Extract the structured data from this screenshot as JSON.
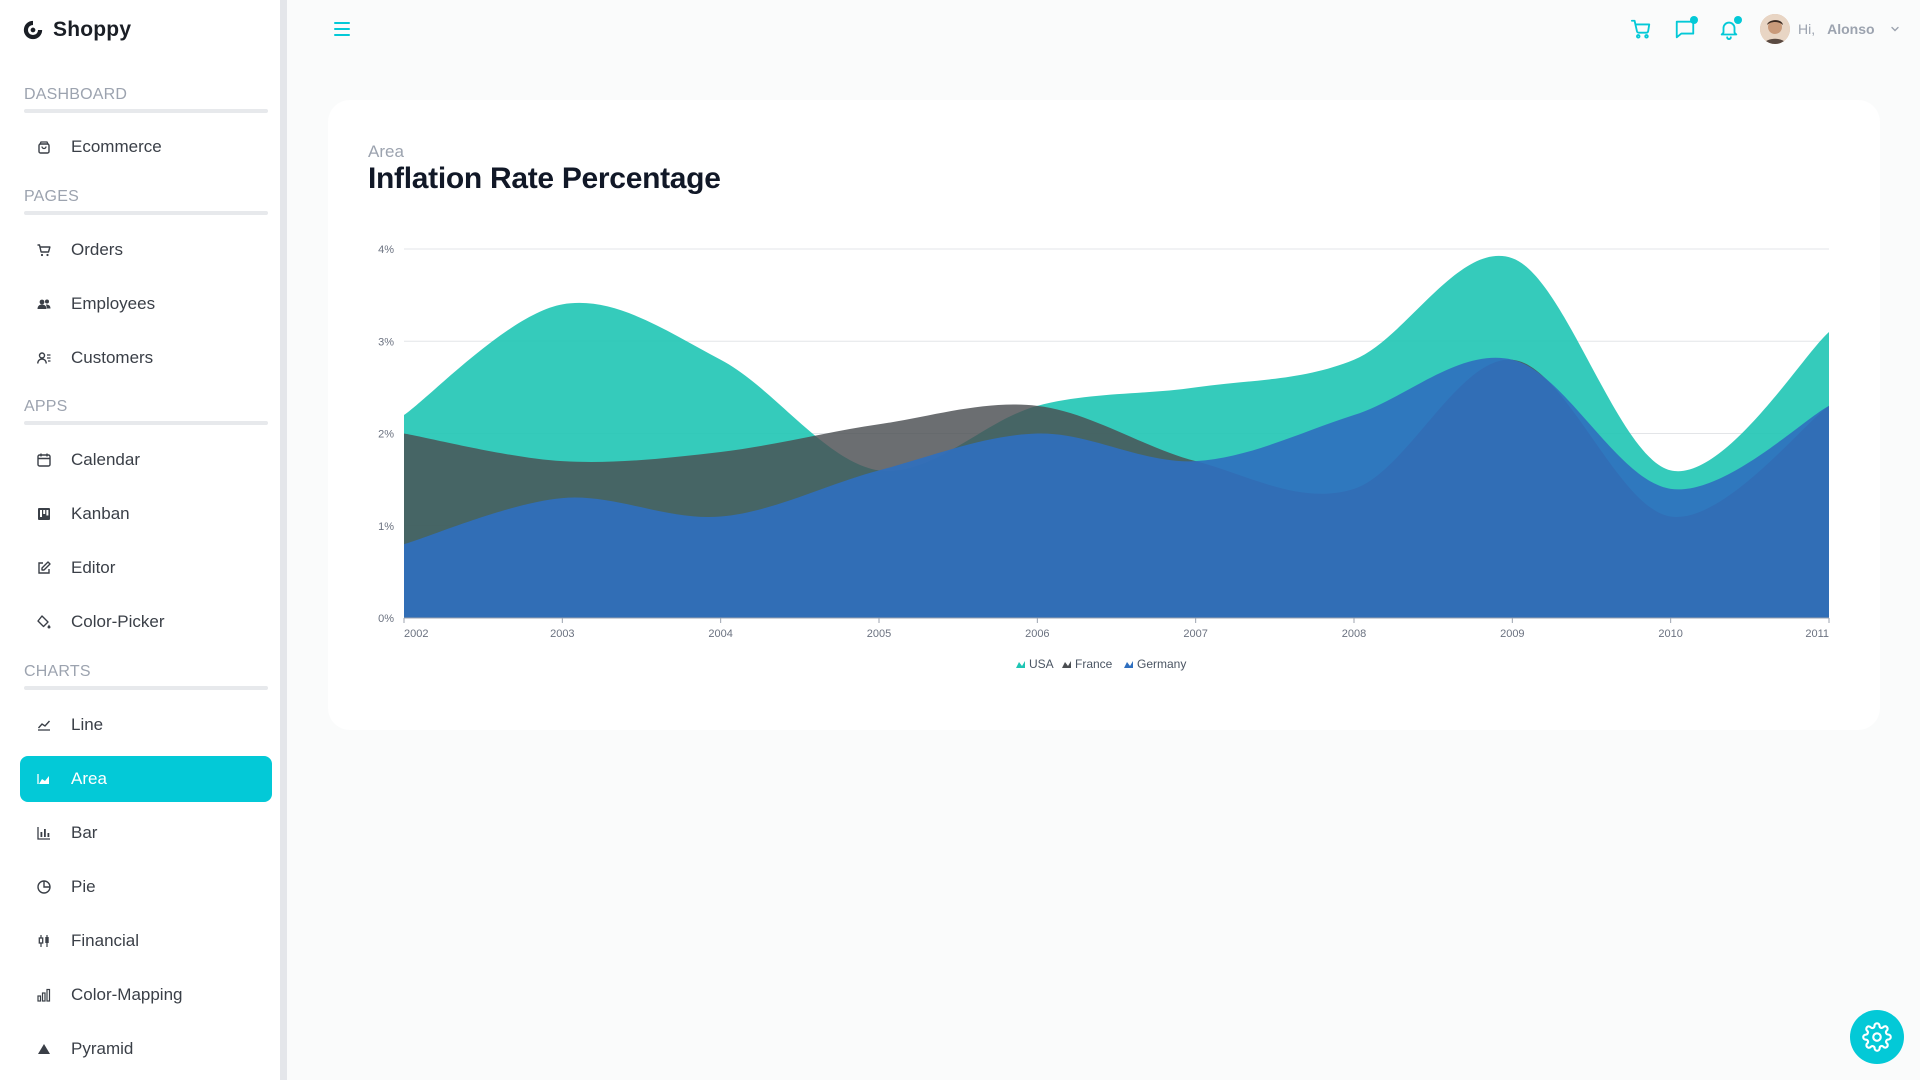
{
  "brand": {
    "name": "Shoppy"
  },
  "sidebar": {
    "sections": [
      {
        "title": "DASHBOARD",
        "items": [
          {
            "label": "Ecommerce",
            "icon": "shopping-bag-icon"
          }
        ]
      },
      {
        "title": "PAGES",
        "items": [
          {
            "label": "Orders",
            "icon": "cart-icon"
          },
          {
            "label": "Employees",
            "icon": "people-icon"
          },
          {
            "label": "Customers",
            "icon": "contacts-icon"
          }
        ]
      },
      {
        "title": "APPS",
        "items": [
          {
            "label": "Calendar",
            "icon": "calendar-icon"
          },
          {
            "label": "Kanban",
            "icon": "kanban-icon"
          },
          {
            "label": "Editor",
            "icon": "edit-icon"
          },
          {
            "label": "Color-Picker",
            "icon": "color-fill-icon"
          }
        ]
      },
      {
        "title": "CHARTS",
        "items": [
          {
            "label": "Line",
            "icon": "line-chart-icon"
          },
          {
            "label": "Area",
            "icon": "area-chart-icon",
            "active": true
          },
          {
            "label": "Bar",
            "icon": "bar-chart-icon"
          },
          {
            "label": "Pie",
            "icon": "pie-chart-icon"
          },
          {
            "label": "Financial",
            "icon": "candlestick-icon"
          },
          {
            "label": "Color-Mapping",
            "icon": "stacked-bar-icon"
          },
          {
            "label": "Pyramid",
            "icon": "pyramid-icon"
          }
        ]
      }
    ]
  },
  "topbar": {
    "greeting": "Hi,",
    "user_name": "Alonso",
    "icons": [
      "menu-icon",
      "cart-icon",
      "chat-icon",
      "bell-icon",
      "chevron-down-icon"
    ]
  },
  "page": {
    "category": "Area",
    "title": "Inflation Rate Percentage"
  },
  "colors": {
    "accent": "#03c9d7",
    "usa": "#1fc5b4",
    "france": "#4b4e52",
    "germany": "#2f6fbf"
  },
  "chart_data": {
    "type": "area",
    "x": [
      "2002",
      "2003",
      "2004",
      "2005",
      "2006",
      "2007",
      "2008",
      "2009",
      "2010",
      "2011"
    ],
    "series": [
      {
        "name": "USA",
        "values": [
          2.2,
          3.4,
          2.8,
          1.6,
          2.3,
          2.5,
          2.8,
          3.9,
          1.6,
          3.1
        ]
      },
      {
        "name": "France",
        "values": [
          2.0,
          1.7,
          1.8,
          2.1,
          2.3,
          1.7,
          1.4,
          2.8,
          1.1,
          2.3
        ]
      },
      {
        "name": "Germany",
        "values": [
          0.8,
          1.3,
          1.1,
          1.6,
          2.0,
          1.7,
          2.2,
          2.8,
          1.4,
          2.3
        ]
      }
    ],
    "y_ticks": [
      "0%",
      "1%",
      "2%",
      "3%",
      "4%"
    ],
    "ylim": [
      0,
      4
    ],
    "grid": true,
    "legend_placement": "bottom"
  },
  "settings": {
    "icon": "gear-icon"
  }
}
